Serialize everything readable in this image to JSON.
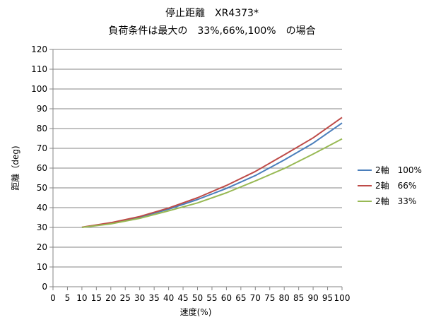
{
  "chart_data": {
    "type": "line",
    "title": "停止距離　XR4373*",
    "subtitle": "負荷条件は最大の　33%,66%,100%　の場合",
    "xlabel": "速度(%)",
    "ylabel": "距離（deg)",
    "xlim": [
      0,
      100
    ],
    "ylim": [
      0,
      120
    ],
    "xticks": [
      0,
      5,
      10,
      15,
      20,
      25,
      30,
      35,
      40,
      45,
      50,
      55,
      60,
      65,
      70,
      75,
      80,
      85,
      90,
      95,
      100
    ],
    "yticks": [
      0,
      10,
      20,
      30,
      40,
      50,
      60,
      70,
      80,
      90,
      100,
      110,
      120
    ],
    "grid": "horizontal",
    "legend_position": "right",
    "x": [
      10,
      20,
      30,
      40,
      50,
      60,
      70,
      80,
      90,
      100
    ],
    "series": [
      {
        "name": "2軸　100%",
        "color": "#4a7ebb",
        "values": [
          30,
          32.2,
          35.2,
          39.2,
          44.1,
          49.7,
          56.2,
          64.1,
          72.6,
          82.8
        ]
      },
      {
        "name": "2軸　66%",
        "color": "#be4b48",
        "values": [
          30.1,
          32.4,
          35.5,
          39.8,
          45.0,
          51.2,
          58.3,
          66.7,
          75.3,
          85.6
        ]
      },
      {
        "name": "2軸　33%",
        "color": "#98b954",
        "values": [
          30.0,
          31.8,
          34.6,
          38.4,
          42.4,
          47.5,
          53.5,
          59.8,
          67.1,
          74.8
        ]
      }
    ]
  }
}
